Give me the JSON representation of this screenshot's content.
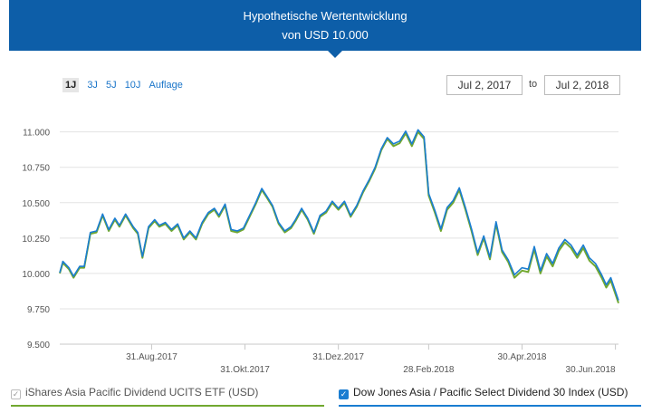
{
  "header": {
    "line1": "Hypothetische Wertentwicklung",
    "line2": "von USD 10.000"
  },
  "ranges": [
    "1J",
    "3J",
    "5J",
    "10J",
    "Auflage"
  ],
  "active_range": "1J",
  "date_from": "Jul 2, 2017",
  "date_to_label": "to",
  "date_to": "Jul 2, 2018",
  "legend": {
    "etf": "iShares Asia Pacific Dividend UCITS ETF (USD)",
    "index": "Dow Jones Asia / Pacific Select Dividend 30 Index (USD)"
  },
  "colors": {
    "header": "#0d5ea8",
    "etf": "#71a830",
    "index": "#1a7dd1"
  },
  "chart_data": {
    "type": "line",
    "ylim": [
      9500,
      11100
    ],
    "yticks": [
      9500,
      9750,
      10000,
      10250,
      10500,
      10750,
      11000
    ],
    "ytick_labels": [
      "9.500",
      "9.750",
      "10.000",
      "10.250",
      "10.500",
      "10.750",
      "11.000"
    ],
    "xlim": [
      "2017-07-02",
      "2018-07-02"
    ],
    "xticks": [
      {
        "date": "2017-08-31",
        "label": "31.Aug.2017",
        "row": 0
      },
      {
        "date": "2017-10-31",
        "label": "31.Okt.2017",
        "row": 1
      },
      {
        "date": "2017-12-31",
        "label": "31.Dez.2017",
        "row": 0
      },
      {
        "date": "2018-02-28",
        "label": "28.Feb.2018",
        "row": 1
      },
      {
        "date": "2018-04-30",
        "label": "30.Apr.2018",
        "row": 0
      },
      {
        "date": "2018-06-30",
        "label": "30.Jun.2018",
        "row": 1
      }
    ],
    "series": [
      {
        "name": "iShares Asia Pacific Dividend UCITS ETF (USD)",
        "color": "#71a830",
        "points": [
          [
            "2017-07-02",
            10000
          ],
          [
            "2017-07-04",
            10075
          ],
          [
            "2017-07-08",
            10030
          ],
          [
            "2017-07-11",
            9970
          ],
          [
            "2017-07-15",
            10040
          ],
          [
            "2017-07-18",
            10040
          ],
          [
            "2017-07-22",
            10280
          ],
          [
            "2017-07-26",
            10290
          ],
          [
            "2017-07-30",
            10410
          ],
          [
            "2017-08-03",
            10300
          ],
          [
            "2017-08-07",
            10380
          ],
          [
            "2017-08-10",
            10330
          ],
          [
            "2017-08-14",
            10410
          ],
          [
            "2017-08-19",
            10320
          ],
          [
            "2017-08-22",
            10280
          ],
          [
            "2017-08-25",
            10110
          ],
          [
            "2017-08-29",
            10320
          ],
          [
            "2017-09-02",
            10370
          ],
          [
            "2017-09-05",
            10330
          ],
          [
            "2017-09-09",
            10350
          ],
          [
            "2017-09-13",
            10300
          ],
          [
            "2017-09-17",
            10340
          ],
          [
            "2017-09-21",
            10240
          ],
          [
            "2017-09-25",
            10290
          ],
          [
            "2017-09-29",
            10240
          ],
          [
            "2017-10-03",
            10350
          ],
          [
            "2017-10-07",
            10420
          ],
          [
            "2017-10-11",
            10450
          ],
          [
            "2017-10-14",
            10400
          ],
          [
            "2017-10-18",
            10480
          ],
          [
            "2017-10-22",
            10300
          ],
          [
            "2017-10-26",
            10290
          ],
          [
            "2017-10-30",
            10310
          ],
          [
            "2017-11-03",
            10400
          ],
          [
            "2017-11-07",
            10490
          ],
          [
            "2017-11-11",
            10590
          ],
          [
            "2017-11-14",
            10540
          ],
          [
            "2017-11-18",
            10470
          ],
          [
            "2017-11-22",
            10350
          ],
          [
            "2017-11-26",
            10290
          ],
          [
            "2017-11-30",
            10320
          ],
          [
            "2017-12-03",
            10370
          ],
          [
            "2017-12-07",
            10450
          ],
          [
            "2017-12-11",
            10380
          ],
          [
            "2017-12-15",
            10280
          ],
          [
            "2017-12-19",
            10400
          ],
          [
            "2017-12-23",
            10430
          ],
          [
            "2017-12-27",
            10500
          ],
          [
            "2017-12-31",
            10450
          ],
          [
            "2018-01-04",
            10500
          ],
          [
            "2018-01-08",
            10400
          ],
          [
            "2018-01-12",
            10470
          ],
          [
            "2018-01-16",
            10570
          ],
          [
            "2018-01-20",
            10650
          ],
          [
            "2018-01-24",
            10740
          ],
          [
            "2018-01-28",
            10870
          ],
          [
            "2018-02-01",
            10950
          ],
          [
            "2018-02-05",
            10900
          ],
          [
            "2018-02-09",
            10920
          ],
          [
            "2018-02-13",
            10990
          ],
          [
            "2018-02-17",
            10900
          ],
          [
            "2018-02-21",
            11000
          ],
          [
            "2018-02-25",
            10950
          ],
          [
            "2018-02-28",
            10550
          ],
          [
            "2018-03-04",
            10430
          ],
          [
            "2018-03-08",
            10300
          ],
          [
            "2018-03-12",
            10450
          ],
          [
            "2018-03-16",
            10500
          ],
          [
            "2018-03-20",
            10590
          ],
          [
            "2018-03-24",
            10450
          ],
          [
            "2018-03-28",
            10300
          ],
          [
            "2018-04-01",
            10130
          ],
          [
            "2018-04-05",
            10250
          ],
          [
            "2018-04-09",
            10100
          ],
          [
            "2018-04-13",
            10350
          ],
          [
            "2018-04-17",
            10150
          ],
          [
            "2018-04-21",
            10080
          ],
          [
            "2018-04-25",
            9970
          ],
          [
            "2018-04-30",
            10020
          ],
          [
            "2018-05-04",
            10010
          ],
          [
            "2018-05-08",
            10170
          ],
          [
            "2018-05-12",
            10000
          ],
          [
            "2018-05-16",
            10120
          ],
          [
            "2018-05-20",
            10050
          ],
          [
            "2018-05-24",
            10160
          ],
          [
            "2018-05-28",
            10220
          ],
          [
            "2018-06-01",
            10180
          ],
          [
            "2018-06-05",
            10110
          ],
          [
            "2018-06-09",
            10180
          ],
          [
            "2018-06-13",
            10090
          ],
          [
            "2018-06-17",
            10050
          ],
          [
            "2018-06-21",
            9970
          ],
          [
            "2018-06-24",
            9900
          ],
          [
            "2018-06-27",
            9950
          ],
          [
            "2018-07-02",
            9790
          ]
        ]
      },
      {
        "name": "Dow Jones Asia / Pacific Select Dividend 30 Index (USD)",
        "color": "#1a7dd1",
        "points": [
          [
            "2017-07-02",
            10005
          ],
          [
            "2017-07-04",
            10085
          ],
          [
            "2017-07-08",
            10040
          ],
          [
            "2017-07-11",
            9980
          ],
          [
            "2017-07-15",
            10050
          ],
          [
            "2017-07-18",
            10050
          ],
          [
            "2017-07-22",
            10290
          ],
          [
            "2017-07-26",
            10300
          ],
          [
            "2017-07-30",
            10420
          ],
          [
            "2017-08-03",
            10310
          ],
          [
            "2017-08-07",
            10390
          ],
          [
            "2017-08-10",
            10340
          ],
          [
            "2017-08-14",
            10420
          ],
          [
            "2017-08-19",
            10330
          ],
          [
            "2017-08-22",
            10290
          ],
          [
            "2017-08-25",
            10120
          ],
          [
            "2017-08-29",
            10330
          ],
          [
            "2017-09-02",
            10380
          ],
          [
            "2017-09-05",
            10340
          ],
          [
            "2017-09-09",
            10360
          ],
          [
            "2017-09-13",
            10310
          ],
          [
            "2017-09-17",
            10350
          ],
          [
            "2017-09-21",
            10250
          ],
          [
            "2017-09-25",
            10300
          ],
          [
            "2017-09-29",
            10250
          ],
          [
            "2017-10-03",
            10360
          ],
          [
            "2017-10-07",
            10430
          ],
          [
            "2017-10-11",
            10460
          ],
          [
            "2017-10-14",
            10410
          ],
          [
            "2017-10-18",
            10490
          ],
          [
            "2017-10-22",
            10310
          ],
          [
            "2017-10-26",
            10300
          ],
          [
            "2017-10-30",
            10320
          ],
          [
            "2017-11-03",
            10410
          ],
          [
            "2017-11-07",
            10500
          ],
          [
            "2017-11-11",
            10600
          ],
          [
            "2017-11-14",
            10550
          ],
          [
            "2017-11-18",
            10480
          ],
          [
            "2017-11-22",
            10360
          ],
          [
            "2017-11-26",
            10300
          ],
          [
            "2017-11-30",
            10330
          ],
          [
            "2017-12-03",
            10380
          ],
          [
            "2017-12-07",
            10460
          ],
          [
            "2017-12-11",
            10390
          ],
          [
            "2017-12-15",
            10290
          ],
          [
            "2017-12-19",
            10410
          ],
          [
            "2017-12-23",
            10440
          ],
          [
            "2017-12-27",
            10510
          ],
          [
            "2017-12-31",
            10460
          ],
          [
            "2018-01-04",
            10510
          ],
          [
            "2018-01-08",
            10410
          ],
          [
            "2018-01-12",
            10480
          ],
          [
            "2018-01-16",
            10580
          ],
          [
            "2018-01-20",
            10660
          ],
          [
            "2018-01-24",
            10750
          ],
          [
            "2018-01-28",
            10880
          ],
          [
            "2018-02-01",
            10960
          ],
          [
            "2018-02-05",
            10915
          ],
          [
            "2018-02-09",
            10935
          ],
          [
            "2018-02-13",
            11005
          ],
          [
            "2018-02-17",
            10915
          ],
          [
            "2018-02-21",
            11015
          ],
          [
            "2018-02-25",
            10965
          ],
          [
            "2018-02-28",
            10565
          ],
          [
            "2018-03-04",
            10445
          ],
          [
            "2018-03-08",
            10315
          ],
          [
            "2018-03-12",
            10465
          ],
          [
            "2018-03-16",
            10515
          ],
          [
            "2018-03-20",
            10605
          ],
          [
            "2018-03-24",
            10465
          ],
          [
            "2018-03-28",
            10315
          ],
          [
            "2018-04-01",
            10145
          ],
          [
            "2018-04-05",
            10265
          ],
          [
            "2018-04-09",
            10115
          ],
          [
            "2018-04-13",
            10365
          ],
          [
            "2018-04-17",
            10165
          ],
          [
            "2018-04-21",
            10095
          ],
          [
            "2018-04-25",
            9990
          ],
          [
            "2018-04-30",
            10040
          ],
          [
            "2018-05-04",
            10030
          ],
          [
            "2018-05-08",
            10190
          ],
          [
            "2018-05-12",
            10020
          ],
          [
            "2018-05-16",
            10140
          ],
          [
            "2018-05-20",
            10070
          ],
          [
            "2018-05-24",
            10180
          ],
          [
            "2018-05-28",
            10240
          ],
          [
            "2018-06-01",
            10200
          ],
          [
            "2018-06-05",
            10130
          ],
          [
            "2018-06-09",
            10200
          ],
          [
            "2018-06-13",
            10110
          ],
          [
            "2018-06-17",
            10070
          ],
          [
            "2018-06-21",
            9990
          ],
          [
            "2018-06-24",
            9920
          ],
          [
            "2018-06-27",
            9970
          ],
          [
            "2018-07-02",
            9810
          ]
        ]
      }
    ]
  }
}
